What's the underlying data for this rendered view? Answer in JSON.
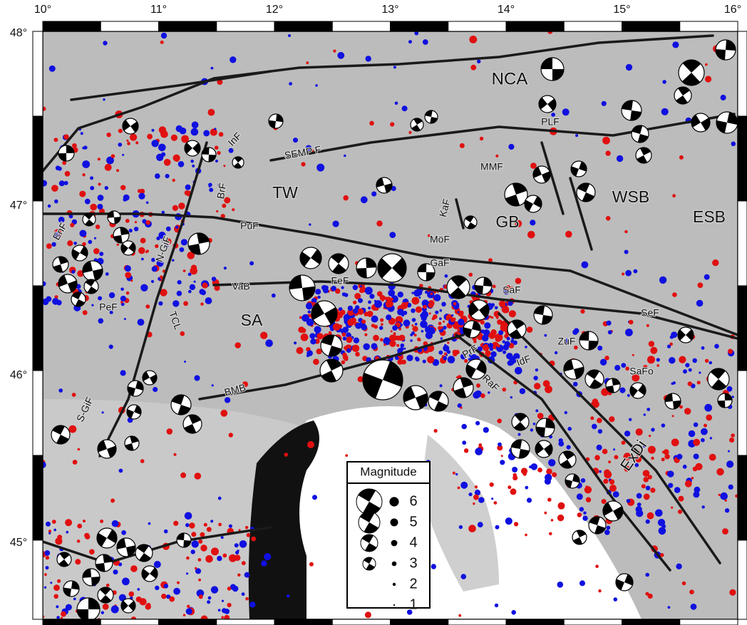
{
  "axes": {
    "longitude_labels": [
      "10°",
      "11°",
      "12°",
      "13°",
      "14°",
      "15°",
      "16°"
    ],
    "latitude_labels": [
      "48°",
      "47°",
      "46°",
      "45°"
    ]
  },
  "regions": [
    "NCA",
    "TW",
    "GB",
    "WSB",
    "ESB",
    "SA",
    "ExDi"
  ],
  "faults": [
    "SEMP F",
    "PLF",
    "MMF",
    "InF",
    "BrF",
    "PuF",
    "KaF",
    "MöF",
    "GaF",
    "FeF",
    "SaF",
    "SeF",
    "VaB",
    "TCL",
    "PeF",
    "N-GiF",
    "EnF",
    "S-GiF",
    "BMB",
    "PrF",
    "IdF",
    "ZuF",
    "SaFo",
    "RaF"
  ],
  "legend": {
    "title": "Magnitude",
    "magnitudes": [
      6,
      5,
      4,
      3,
      2,
      1
    ]
  }
}
